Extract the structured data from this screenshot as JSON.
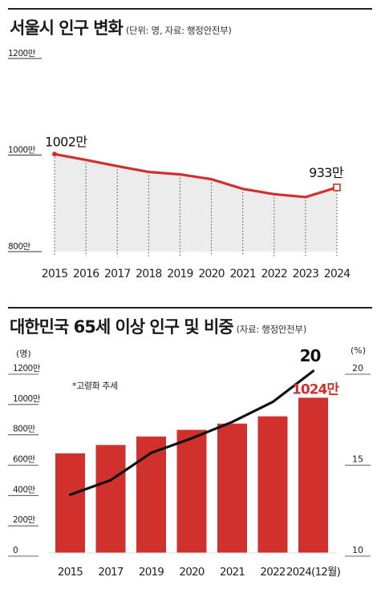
{
  "chart_data": [
    {
      "type": "line",
      "title": "서울시 인구 변화",
      "subtitle": "(단위: 명, 자료: 행정안전부)",
      "x": [
        "2015",
        "2016",
        "2017",
        "2018",
        "2019",
        "2020",
        "2021",
        "2022",
        "2023",
        "2024"
      ],
      "values": [
        1002,
        990,
        977,
        965,
        960,
        950,
        930,
        919,
        913,
        933
      ],
      "y_ticks": [
        "1200만",
        "1000만",
        "800만"
      ],
      "ylim": [
        800,
        1200
      ],
      "annotations": {
        "first": "1002만",
        "last": "933만"
      },
      "grid": false,
      "colors": {
        "line": "#d0312d",
        "area": "#ececec"
      }
    },
    {
      "type": "bar",
      "title": "대한민국 65세 이상 인구 및 비중",
      "subtitle": "(자료: 행정안전부)",
      "categories": [
        "2015",
        "2017",
        "2019",
        "2020",
        "2021",
        "2022",
        "2024(12월)"
      ],
      "values": [
        657,
        712,
        768,
        812,
        853,
        901,
        1024
      ],
      "line_values": [
        13.2,
        14.0,
        15.5,
        16.3,
        17.2,
        18.3,
        20
      ],
      "left_unit": "(명)",
      "right_unit": "(%)",
      "left_ticks": [
        "1200만",
        "1000만",
        "800만",
        "600만",
        "400만",
        "200만",
        "0"
      ],
      "right_ticks": [
        "20",
        "15",
        "10"
      ],
      "ylim": [
        0,
        1200
      ],
      "ylim_right": [
        10,
        20
      ],
      "legend": "*고령화 추세",
      "annotations": {
        "bar_last": "1024만",
        "line_last": "20"
      },
      "colors": {
        "bar": "#d0312d",
        "line": "#111111",
        "annotation": "#d0312d"
      }
    }
  ]
}
